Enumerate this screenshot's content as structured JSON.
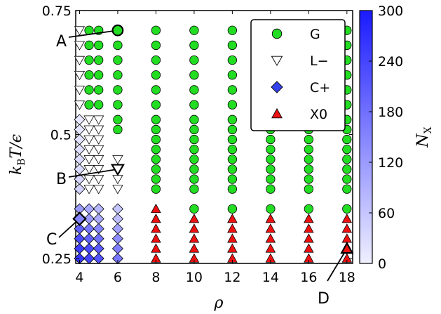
{
  "chart_data": {
    "type": "scatter",
    "xlabel": "ρ",
    "ylabel": "k_B T/ϵ",
    "ylabel_parts": {
      "main": "k",
      "sub": "B",
      "rest": "T/ϵ"
    },
    "xlim": [
      3.8,
      18.3
    ],
    "ylim": [
      0.24,
      0.75
    ],
    "xticks": [
      4,
      6,
      8,
      10,
      12,
      14,
      16,
      18
    ],
    "yticks": [
      0.25,
      0.5,
      0.75
    ],
    "ytick_labels": [
      "0.25",
      "0.5",
      "0.75"
    ],
    "colorbar": {
      "label": "N_X",
      "label_parts": {
        "main": "N",
        "sub": "X"
      },
      "range": [
        0,
        300
      ],
      "ticks": [
        0,
        60,
        120,
        180,
        240,
        300
      ],
      "colors": {
        "low": "#f0f0ff",
        "high": "#1a1aff"
      }
    },
    "colors": {
      "G": "#22dd22",
      "L": "#ffffff",
      "C": "#3344ee",
      "X": "#ee1111"
    },
    "legend": [
      {
        "key": "G",
        "label": "G",
        "marker": "circle"
      },
      {
        "key": "L",
        "label": "L−",
        "marker": "triangle-down"
      },
      {
        "key": "C",
        "label": "C+",
        "marker": "diamond"
      },
      {
        "key": "X",
        "label": "X0",
        "marker": "triangle-up"
      }
    ],
    "legend_position": "top-right",
    "T_values": [
      0.25,
      0.27,
      0.29,
      0.31,
      0.33,
      0.35,
      0.37,
      0.39,
      0.41,
      0.43,
      0.45,
      0.47,
      0.49,
      0.51,
      0.53,
      0.56,
      0.59,
      0.62,
      0.65,
      0.68,
      0.71
    ],
    "rho_values": [
      4,
      4.5,
      5,
      6,
      8,
      10,
      12,
      14,
      16,
      18
    ],
    "grid": [
      [
        "C",
        "C",
        "C",
        "C",
        "X",
        "X",
        "X",
        "X",
        "X",
        "X"
      ],
      [
        "C",
        "C",
        "C",
        "C",
        "X",
        "X",
        "X",
        "X",
        "X",
        "X"
      ],
      [
        "C",
        "C",
        "C",
        "C",
        "X",
        "X",
        "X",
        "X",
        "X",
        "X"
      ],
      [
        "C",
        "C",
        "C",
        "C",
        "X",
        "X",
        "X",
        "X",
        "X",
        "X"
      ],
      [
        "C",
        "C",
        "C",
        "C",
        "X",
        "X",
        "X",
        "X",
        "X",
        "X"
      ],
      [
        "C",
        "C",
        "C",
        "C",
        "X",
        "G",
        "G",
        "G",
        "G",
        "G"
      ],
      [
        "",
        "",
        "",
        "",
        "",
        "",
        "",
        "",
        "",
        ""
      ],
      [
        "C",
        "L",
        "L",
        "L",
        "G",
        "G",
        "G",
        "G",
        "G",
        "G"
      ],
      [
        "C",
        "L",
        "L",
        "L",
        "G",
        "G",
        "G",
        "G",
        "G",
        "G"
      ],
      [
        "C",
        "L",
        "L",
        "L",
        "G",
        "G",
        "G",
        "G",
        "G",
        "G"
      ],
      [
        "C",
        "L",
        "L",
        "L",
        "G",
        "G",
        "G",
        "G",
        "G",
        "G"
      ],
      [
        "C",
        "L",
        "L",
        "",
        "G",
        "G",
        "G",
        "G",
        "G",
        "G"
      ],
      [
        "C",
        "L",
        "L",
        "",
        "G",
        "G",
        "G",
        "G",
        "G",
        "G"
      ],
      [
        "C",
        "L",
        "L",
        "G",
        "G",
        "G",
        "G",
        "G",
        "G",
        "G"
      ],
      [
        "C",
        "L",
        "L",
        "G",
        "G",
        "G",
        "G",
        "G",
        "G",
        "G"
      ],
      [
        "L",
        "G",
        "G",
        "G",
        "G",
        "G",
        "G",
        "G",
        "G",
        "G"
      ],
      [
        "L",
        "G",
        "G",
        "G",
        "G",
        "G",
        "G",
        "G",
        "G",
        "G"
      ],
      [
        "L",
        "G",
        "G",
        "G",
        "G",
        "G",
        "G",
        "G",
        "G",
        "G"
      ],
      [
        "L",
        "G",
        "G",
        "G",
        "G",
        "G",
        "G",
        "G",
        "G",
        "G"
      ],
      [
        "L",
        "G",
        "G",
        "G",
        "G",
        "G",
        "G",
        "G",
        "G",
        "G"
      ],
      [
        "L",
        "G",
        "G",
        "G",
        "G",
        "G",
        "G",
        "G",
        "G",
        "G"
      ]
    ],
    "nx_grid": [
      [
        260,
        240,
        220,
        170
      ],
      [
        250,
        230,
        210,
        160
      ],
      [
        230,
        200,
        180,
        140
      ],
      [
        200,
        170,
        150,
        110
      ],
      [
        150,
        120,
        100,
        70
      ],
      [
        120,
        100,
        80,
        60
      ],
      [
        0,
        0,
        0,
        0
      ],
      [
        40,
        0,
        0,
        0
      ],
      [
        35,
        0,
        0,
        0
      ],
      [
        30,
        0,
        0,
        0
      ],
      [
        28,
        0,
        0,
        0
      ],
      [
        25,
        0,
        0,
        0
      ],
      [
        20,
        0,
        0,
        0
      ],
      [
        15,
        0,
        0,
        0
      ],
      [
        12,
        0,
        0,
        0
      ],
      [
        0,
        0,
        0,
        0
      ],
      [
        0,
        0,
        0,
        0
      ],
      [
        0,
        0,
        0,
        0
      ],
      [
        0,
        0,
        0,
        0
      ],
      [
        0,
        0,
        0,
        0
      ],
      [
        0,
        0,
        0,
        0
      ]
    ],
    "annotations": [
      {
        "label": "A",
        "rho": 6,
        "T": 0.71,
        "marker": "circle"
      },
      {
        "label": "B",
        "rho": 6,
        "T": 0.43,
        "marker": "triangle-down"
      },
      {
        "label": "C",
        "rho": 4,
        "T": 0.33,
        "marker": "diamond"
      },
      {
        "label": "D",
        "rho": 18,
        "T": 0.27,
        "marker": "triangle-up"
      }
    ]
  }
}
